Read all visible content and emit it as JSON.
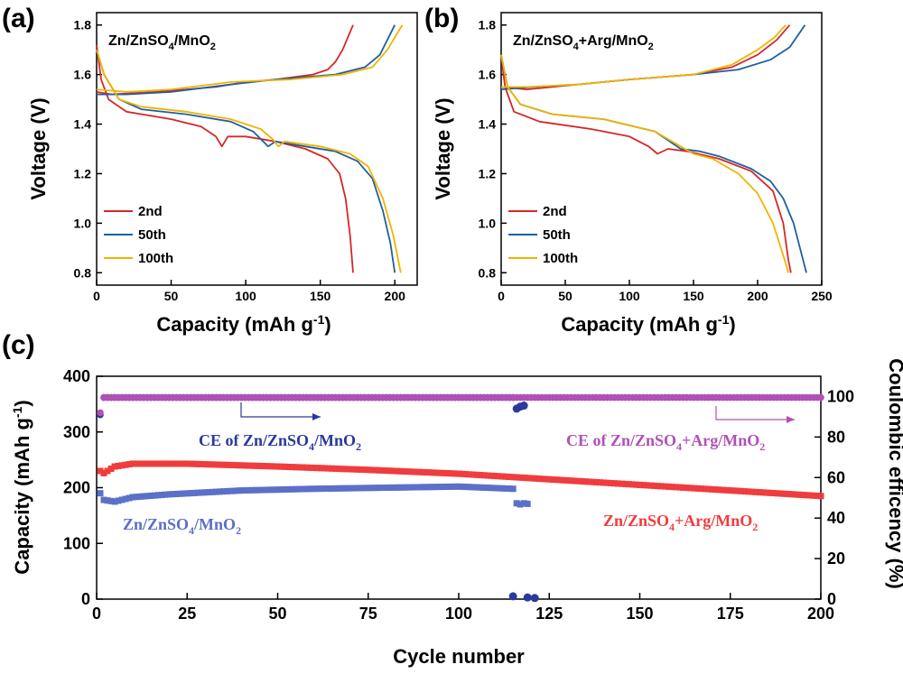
{
  "colors": {
    "red": "#d62728",
    "blue": "#1f5fa0",
    "yellow": "#f0b400",
    "navy": "#2a3a9a",
    "purple": "#b050b8",
    "slate": "#5b70c8",
    "bright_red": "#f03c3c"
  },
  "chart_data": [
    {
      "panel": "(a)",
      "type": "line",
      "title": "Zn/ZnSO4/MnO2",
      "xlabel": "Capacity (mAh g-1)",
      "ylabel": "Voltage (V)",
      "xlim": [
        0,
        215
      ],
      "ylim": [
        0.75,
        1.85
      ],
      "xticks": [
        0,
        50,
        100,
        150,
        200
      ],
      "yticks": [
        0.8,
        1.0,
        1.2,
        1.4,
        1.6,
        1.8
      ],
      "legend_position": "bottom-left",
      "series": [
        {
          "name": "2nd",
          "color": "#d62728",
          "discharge": [
            [
              0,
              1.72
            ],
            [
              3,
              1.58
            ],
            [
              8,
              1.5
            ],
            [
              20,
              1.45
            ],
            [
              50,
              1.42
            ],
            [
              70,
              1.39
            ],
            [
              80,
              1.35
            ],
            [
              84,
              1.31
            ],
            [
              88,
              1.35
            ],
            [
              100,
              1.35
            ],
            [
              120,
              1.33
            ],
            [
              140,
              1.3
            ],
            [
              155,
              1.26
            ],
            [
              163,
              1.2
            ],
            [
              167,
              1.1
            ],
            [
              170,
              0.95
            ],
            [
              172,
              0.8
            ]
          ],
          "charge": [
            [
              0,
              1.53
            ],
            [
              10,
              1.52
            ],
            [
              40,
              1.53
            ],
            [
              80,
              1.55
            ],
            [
              100,
              1.57
            ],
            [
              120,
              1.58
            ],
            [
              145,
              1.6
            ],
            [
              155,
              1.62
            ],
            [
              160,
              1.65
            ],
            [
              165,
              1.7
            ],
            [
              172,
              1.8
            ]
          ]
        },
        {
          "name": "50th",
          "color": "#1f5fa0",
          "discharge": [
            [
              0,
              1.7
            ],
            [
              5,
              1.6
            ],
            [
              15,
              1.5
            ],
            [
              30,
              1.46
            ],
            [
              60,
              1.44
            ],
            [
              90,
              1.41
            ],
            [
              105,
              1.37
            ],
            [
              115,
              1.31
            ],
            [
              120,
              1.33
            ],
            [
              140,
              1.31
            ],
            [
              160,
              1.29
            ],
            [
              175,
              1.25
            ],
            [
              185,
              1.18
            ],
            [
              192,
              1.05
            ],
            [
              197,
              0.92
            ],
            [
              200,
              0.8
            ]
          ],
          "charge": [
            [
              0,
              1.52
            ],
            [
              20,
              1.52
            ],
            [
              50,
              1.53
            ],
            [
              90,
              1.56
            ],
            [
              120,
              1.58
            ],
            [
              160,
              1.6
            ],
            [
              180,
              1.63
            ],
            [
              190,
              1.68
            ],
            [
              200,
              1.8
            ]
          ]
        },
        {
          "name": "100th",
          "color": "#f0b400",
          "discharge": [
            [
              0,
              1.7
            ],
            [
              5,
              1.6
            ],
            [
              15,
              1.5
            ],
            [
              30,
              1.47
            ],
            [
              60,
              1.45
            ],
            [
              90,
              1.42
            ],
            [
              110,
              1.38
            ],
            [
              118,
              1.34
            ],
            [
              122,
              1.31
            ],
            [
              126,
              1.33
            ],
            [
              150,
              1.31
            ],
            [
              170,
              1.28
            ],
            [
              182,
              1.23
            ],
            [
              192,
              1.1
            ],
            [
              199,
              0.95
            ],
            [
              204,
              0.8
            ]
          ],
          "charge": [
            [
              0,
              1.54
            ],
            [
              20,
              1.53
            ],
            [
              50,
              1.54
            ],
            [
              90,
              1.57
            ],
            [
              130,
              1.58
            ],
            [
              165,
              1.6
            ],
            [
              185,
              1.63
            ],
            [
              195,
              1.7
            ],
            [
              205,
              1.8
            ]
          ]
        }
      ]
    },
    {
      "panel": "(b)",
      "type": "line",
      "title": "Zn/ZnSO4+Arg/MnO2",
      "xlabel": "Capacity (mAh g-1)",
      "ylabel": "Voltage (V)",
      "xlim": [
        0,
        250
      ],
      "ylim": [
        0.75,
        1.85
      ],
      "xticks": [
        0,
        50,
        100,
        150,
        200,
        250
      ],
      "yticks": [
        0.8,
        1.0,
        1.2,
        1.4,
        1.6,
        1.8
      ],
      "legend_position": "bottom-left",
      "series": [
        {
          "name": "2nd",
          "color": "#d62728",
          "discharge": [
            [
              0,
              1.68
            ],
            [
              3,
              1.55
            ],
            [
              10,
              1.45
            ],
            [
              30,
              1.41
            ],
            [
              70,
              1.38
            ],
            [
              100,
              1.35
            ],
            [
              115,
              1.31
            ],
            [
              122,
              1.28
            ],
            [
              130,
              1.3
            ],
            [
              145,
              1.29
            ],
            [
              170,
              1.26
            ],
            [
              195,
              1.21
            ],
            [
              212,
              1.13
            ],
            [
              220,
              1.0
            ],
            [
              224,
              0.85
            ],
            [
              226,
              0.8
            ]
          ],
          "charge": [
            [
              0,
              1.55
            ],
            [
              20,
              1.54
            ],
            [
              60,
              1.56
            ],
            [
              100,
              1.58
            ],
            [
              150,
              1.6
            ],
            [
              180,
              1.63
            ],
            [
              200,
              1.68
            ],
            [
              215,
              1.74
            ],
            [
              225,
              1.8
            ]
          ]
        },
        {
          "name": "50th",
          "color": "#1f5fa0",
          "discharge": [
            [
              0,
              1.68
            ],
            [
              5,
              1.55
            ],
            [
              15,
              1.48
            ],
            [
              40,
              1.44
            ],
            [
              80,
              1.42
            ],
            [
              120,
              1.37
            ],
            [
              140,
              1.3
            ],
            [
              155,
              1.29
            ],
            [
              170,
              1.27
            ],
            [
              195,
              1.22
            ],
            [
              210,
              1.17
            ],
            [
              220,
              1.1
            ],
            [
              228,
              1.0
            ],
            [
              234,
              0.88
            ],
            [
              238,
              0.8
            ]
          ],
          "charge": [
            [
              0,
              1.54
            ],
            [
              25,
              1.55
            ],
            [
              60,
              1.56
            ],
            [
              100,
              1.58
            ],
            [
              150,
              1.6
            ],
            [
              185,
              1.62
            ],
            [
              210,
              1.66
            ],
            [
              225,
              1.71
            ],
            [
              237,
              1.8
            ]
          ]
        },
        {
          "name": "100th",
          "color": "#f0b400",
          "discharge": [
            [
              0,
              1.68
            ],
            [
              5,
              1.55
            ],
            [
              15,
              1.48
            ],
            [
              40,
              1.44
            ],
            [
              80,
              1.42
            ],
            [
              120,
              1.37
            ],
            [
              140,
              1.31
            ],
            [
              150,
              1.28
            ],
            [
              165,
              1.26
            ],
            [
              185,
              1.2
            ],
            [
              200,
              1.12
            ],
            [
              212,
              1.0
            ],
            [
              220,
              0.87
            ],
            [
              224,
              0.8
            ]
          ],
          "charge": [
            [
              0,
              1.55
            ],
            [
              20,
              1.55
            ],
            [
              60,
              1.56
            ],
            [
              100,
              1.58
            ],
            [
              150,
              1.6
            ],
            [
              180,
              1.64
            ],
            [
              200,
              1.7
            ],
            [
              213,
              1.75
            ],
            [
              222,
              1.8
            ]
          ]
        }
      ]
    },
    {
      "panel": "(c)",
      "type": "scatter",
      "xlabel": "Cycle number",
      "ylabel_left": "Capacity (mAh g-1)",
      "ylabel_right": "Coulombic efficency (%)",
      "xlim": [
        0,
        200
      ],
      "ylim_left": [
        0,
        400
      ],
      "ylim_right": [
        0,
        110
      ],
      "xticks": [
        0,
        25,
        50,
        75,
        100,
        125,
        150,
        175,
        200
      ],
      "yticks_left": [
        0,
        100,
        200,
        300,
        400
      ],
      "yticks_right": [
        0,
        20,
        40,
        60,
        80,
        100
      ],
      "series": [
        {
          "label": "Zn/ZnSO4/MnO2",
          "axis": "left",
          "color": "#5b70c8",
          "keypoints": [
            [
              1,
              190
            ],
            [
              2,
              178
            ],
            [
              5,
              175
            ],
            [
              10,
              183
            ],
            [
              20,
              188
            ],
            [
              40,
              195
            ],
            [
              60,
              198
            ],
            [
              80,
              200
            ],
            [
              100,
              202
            ],
            [
              115,
              198
            ]
          ],
          "cycles_to": 115,
          "extra_points": [
            [
              116,
              172
            ],
            [
              117,
              170
            ],
            [
              118,
              172
            ],
            [
              119,
              171
            ],
            [
              115,
              5
            ],
            [
              119,
              3
            ],
            [
              121,
              2
            ]
          ]
        },
        {
          "label": "Zn/ZnSO4+Arg/MnO2",
          "axis": "left",
          "color": "#f03c3c",
          "keypoints": [
            [
              1,
              230
            ],
            [
              2,
              226
            ],
            [
              5,
              238
            ],
            [
              10,
              243
            ],
            [
              25,
              243
            ],
            [
              50,
              238
            ],
            [
              75,
              232
            ],
            [
              100,
              225
            ],
            [
              125,
              215
            ],
            [
              150,
              205
            ],
            [
              175,
              195
            ],
            [
              200,
              185
            ]
          ],
          "cycles_to": 200,
          "extra_points": []
        },
        {
          "label": "CE of Zn/ZnSO4/MnO2",
          "axis": "right",
          "color": "#2a3a9a",
          "keypoints": [
            [
              1,
              91
            ],
            [
              2,
              99.5
            ],
            [
              115,
              99.5
            ]
          ],
          "cycles_to": 115,
          "extra_points": [
            [
              116,
              94
            ],
            [
              117,
              95
            ],
            [
              118,
              95.5
            ]
          ]
        },
        {
          "label": "CE of Zn/ZnSO4+Arg/MnO2",
          "axis": "right",
          "color": "#b050b8",
          "keypoints": [
            [
              1,
              92
            ],
            [
              2,
              99.5
            ],
            [
              200,
              99.5
            ]
          ],
          "cycles_to": 200,
          "extra_points": []
        }
      ],
      "annotations": [
        {
          "text": "CE of Zn/ZnSO4/MnO2",
          "color": "#2a3a9a"
        },
        {
          "text": "CE of Zn/ZnSO4+Arg/MnO2",
          "color": "#b050b8"
        },
        {
          "text": "Zn/ZnSO4/MnO2",
          "color": "#5b70c8"
        },
        {
          "text": "Zn/ZnSO4+Arg/MnO2",
          "color": "#f03c3c"
        }
      ]
    }
  ]
}
